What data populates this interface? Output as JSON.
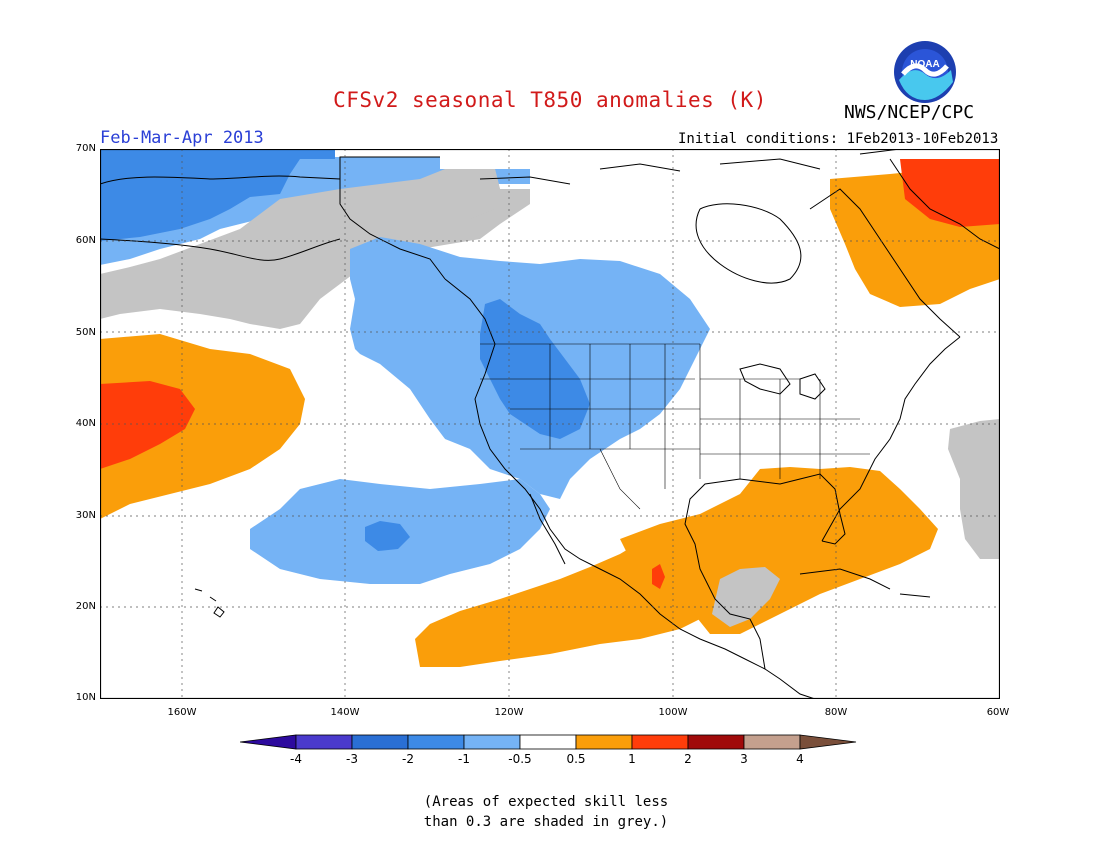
{
  "header": {
    "title": "CFSv2 seasonal T850 anomalies (K)",
    "agency": "NWS/NCEP/CPC",
    "logo_text": "NOAA",
    "season": "Feb-Mar-Apr 2013",
    "initial_conditions": "Initial conditions: 1Feb2013-10Feb2013"
  },
  "map": {
    "lat_labels": [
      "70N",
      "60N",
      "50N",
      "40N",
      "30N",
      "20N",
      "10N"
    ],
    "lon_labels": [
      "160W",
      "140W",
      "120W",
      "100W",
      "80W",
      "60W"
    ],
    "lat_range": [
      10,
      70
    ],
    "lon_range": [
      -170,
      -60
    ],
    "colors": {
      "grey": "#c4c4c4",
      "blue_m1": "#75b3f5",
      "blue_m2": "#3d8ae6",
      "blue_m3": "#2a6fd4",
      "orange_p05": "#fa9e0a",
      "red_p1": "#ff3d0a",
      "coast": "#000000"
    }
  },
  "colorbar": {
    "labels": [
      "-4",
      "-3",
      "-2",
      "-1",
      "-0.5",
      "0.5",
      "1",
      "2",
      "3",
      "4"
    ],
    "colors": [
      "#2d0a9e",
      "#4a3acc",
      "#2a6fd4",
      "#3d8ae6",
      "#75b3f5",
      "#ffffff",
      "#fa9e0a",
      "#ff3d0a",
      "#a00a0a",
      "#c4a08e",
      "#7a4f3a"
    ]
  },
  "footnote": {
    "line1": "(Areas of expected skill less",
    "line2": "than 0.3 are shaded in grey.)"
  }
}
